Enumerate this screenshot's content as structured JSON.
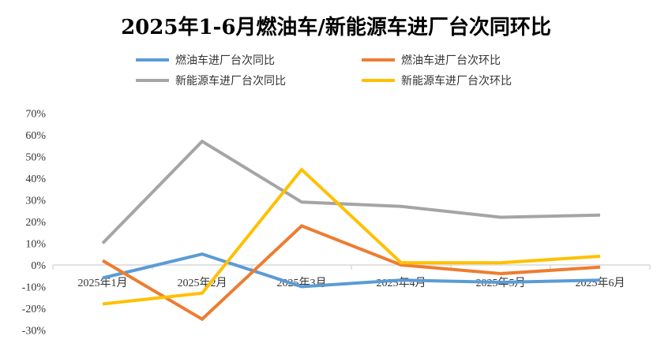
{
  "chart_data": {
    "type": "line",
    "title": "2025年1-6月燃油车/新能源车进厂台次同环比",
    "categories": [
      "2025年1月",
      "2025年2月",
      "2025年3月",
      "2025年4月",
      "2025年5月",
      "2025年6月"
    ],
    "ylim": [
      -30,
      70
    ],
    "yticks": [
      "70%",
      "60%",
      "50%",
      "40%",
      "30%",
      "20%",
      "10%",
      "0%",
      "-10%",
      "-20%",
      "-30%"
    ],
    "ytick_values": [
      70,
      60,
      50,
      40,
      30,
      20,
      10,
      0,
      -10,
      -20,
      -30
    ],
    "xlabel": "",
    "ylabel": "",
    "legend_position": "top",
    "series": [
      {
        "name": "燃油车进厂台次同比",
        "color": "#5B9BD5",
        "values": [
          -6,
          5,
          -10,
          -7,
          -8,
          -7
        ]
      },
      {
        "name": "燃油车进厂台次环比",
        "color": "#ED7D31",
        "values": [
          2,
          -25,
          18,
          0,
          -4,
          -1
        ]
      },
      {
        "name": "新能源车进厂台次同比",
        "color": "#A5A5A5",
        "values": [
          10,
          57,
          29,
          27,
          22,
          23
        ]
      },
      {
        "name": "新能源车进厂台次环比",
        "color": "#FFC000",
        "values": [
          -18,
          -13,
          44,
          1,
          1,
          4
        ]
      }
    ]
  }
}
